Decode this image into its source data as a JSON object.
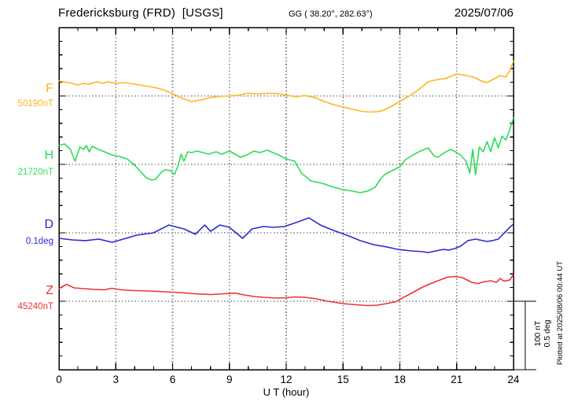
{
  "header": {
    "station": "Fredericksburg (FRD)  [USGS]",
    "gg": "GG ( 38.20°, 282.63°)",
    "date": "2025/07/06"
  },
  "footer": {
    "plotted_at": "Plotted at 2025/08/06 00:44 UT"
  },
  "scalebar": {
    "label": "100 nT\n0.5 deg"
  },
  "chart_data": {
    "type": "line",
    "title": "Fredericksburg (FRD) [USGS] magnetogram 2025/07/06",
    "xlabel": "U T (hour)",
    "x_range": [
      0,
      24
    ],
    "x_ticks": [
      0,
      3,
      6,
      9,
      12,
      15,
      18,
      21,
      24
    ],
    "grid": "dotted vertical every 3 h, dotted horizontal baseline per channel",
    "scale_division": {
      "nT": 100,
      "deg": 0.5
    },
    "series": [
      {
        "name": "F",
        "baseline_label": "50190nT",
        "unit": "nT",
        "color": "#FFB41E",
        "points": [
          [
            0,
            21.8
          ],
          [
            0.5,
            19.5
          ],
          [
            1,
            16.1
          ],
          [
            1.3,
            18.4
          ],
          [
            1.6,
            17.2
          ],
          [
            2,
            20.7
          ],
          [
            2.3,
            18.4
          ],
          [
            2.6,
            20.7
          ],
          [
            3,
            18.4
          ],
          [
            3.5,
            19.5
          ],
          [
            4,
            17.2
          ],
          [
            4.5,
            14.9
          ],
          [
            5,
            12.6
          ],
          [
            5.5,
            9.2
          ],
          [
            6,
            3.4
          ],
          [
            6.5,
            -3.4
          ],
          [
            7,
            -8
          ],
          [
            7.5,
            -5.7
          ],
          [
            8,
            -2.3
          ],
          [
            8.5,
            -0.6
          ],
          [
            9,
            0
          ],
          [
            9.5,
            1.1
          ],
          [
            10,
            4
          ],
          [
            10.5,
            2.9
          ],
          [
            11,
            4
          ],
          [
            11.5,
            3.4
          ],
          [
            12,
            1.1
          ],
          [
            12.5,
            -1.1
          ],
          [
            13,
            0.6
          ],
          [
            13.5,
            -2.3
          ],
          [
            14,
            -8
          ],
          [
            14.5,
            -12.6
          ],
          [
            15,
            -16.1
          ],
          [
            15.5,
            -19.5
          ],
          [
            16,
            -22.4
          ],
          [
            16.4,
            -23.6
          ],
          [
            16.8,
            -23
          ],
          [
            17.1,
            -21.3
          ],
          [
            17.5,
            -16.1
          ],
          [
            18,
            -8
          ],
          [
            18.5,
            0
          ],
          [
            19,
            9.2
          ],
          [
            19.5,
            20.7
          ],
          [
            20,
            24.1
          ],
          [
            20.4,
            25.3
          ],
          [
            20.7,
            28.7
          ],
          [
            21,
            32.2
          ],
          [
            21.3,
            31
          ],
          [
            21.7,
            28.7
          ],
          [
            22,
            26.4
          ],
          [
            22.3,
            21.8
          ],
          [
            22.6,
            19.5
          ],
          [
            23,
            25.3
          ],
          [
            23.3,
            29.9
          ],
          [
            23.6,
            27.6
          ],
          [
            23.8,
            36.8
          ],
          [
            24,
            50.6
          ]
        ]
      },
      {
        "name": "H",
        "baseline_label": "21720nT",
        "unit": "nT",
        "color": "#2EDC57",
        "points": [
          [
            0,
            27.6
          ],
          [
            0.3,
            29.9
          ],
          [
            0.6,
            21.8
          ],
          [
            0.85,
            4.6
          ],
          [
            1.1,
            25.3
          ],
          [
            1.3,
            21.8
          ],
          [
            1.45,
            27.6
          ],
          [
            1.6,
            18.4
          ],
          [
            1.75,
            26.4
          ],
          [
            2,
            23
          ],
          [
            2.4,
            18.4
          ],
          [
            2.8,
            13.8
          ],
          [
            3.2,
            11.5
          ],
          [
            3.6,
            8
          ],
          [
            4,
            -1.1
          ],
          [
            4.3,
            -10.3
          ],
          [
            4.6,
            -19.5
          ],
          [
            4.9,
            -23
          ],
          [
            5.1,
            -21.8
          ],
          [
            5.4,
            -11.5
          ],
          [
            5.6,
            -8
          ],
          [
            5.9,
            -9.2
          ],
          [
            6.1,
            -14.9
          ],
          [
            6.3,
            -1.1
          ],
          [
            6.45,
            14.9
          ],
          [
            6.6,
            4.6
          ],
          [
            6.8,
            18.4
          ],
          [
            7,
            17.2
          ],
          [
            7.3,
            19.5
          ],
          [
            7.6,
            17.2
          ],
          [
            7.9,
            14.9
          ],
          [
            8.3,
            18.4
          ],
          [
            8.6,
            14.9
          ],
          [
            9,
            19.5
          ],
          [
            9.3,
            14.9
          ],
          [
            9.6,
            10.3
          ],
          [
            10,
            14.9
          ],
          [
            10.3,
            19.5
          ],
          [
            10.6,
            17.2
          ],
          [
            11,
            20.7
          ],
          [
            11.3,
            17.2
          ],
          [
            11.6,
            13.8
          ],
          [
            12,
            8
          ],
          [
            12.45,
            4.6
          ],
          [
            12.8,
            -12.6
          ],
          [
            13.3,
            -24.1
          ],
          [
            13.9,
            -27.6
          ],
          [
            14.5,
            -33.3
          ],
          [
            15,
            -36.8
          ],
          [
            15.5,
            -39.1
          ],
          [
            15.9,
            -41.4
          ],
          [
            16.3,
            -39.1
          ],
          [
            16.7,
            -33.3
          ],
          [
            17,
            -20.7
          ],
          [
            17.2,
            -14.9
          ],
          [
            17.5,
            -10.3
          ],
          [
            18,
            -3.4
          ],
          [
            18.3,
            6.9
          ],
          [
            18.7,
            13.8
          ],
          [
            19,
            18.4
          ],
          [
            19.3,
            21.8
          ],
          [
            19.5,
            24.1
          ],
          [
            19.8,
            12.6
          ],
          [
            20,
            10.3
          ],
          [
            20.3,
            16.1
          ],
          [
            20.5,
            19.5
          ],
          [
            20.7,
            21.8
          ],
          [
            21,
            17.2
          ],
          [
            21.2,
            13.8
          ],
          [
            21.5,
            4.6
          ],
          [
            21.7,
            -12.6
          ],
          [
            21.85,
            21.8
          ],
          [
            22,
            -14.9
          ],
          [
            22.2,
            25.3
          ],
          [
            22.4,
            18.4
          ],
          [
            22.6,
            33.3
          ],
          [
            22.8,
            18.4
          ],
          [
            23,
            39.1
          ],
          [
            23.2,
            24.1
          ],
          [
            23.4,
            41.4
          ],
          [
            23.6,
            35.6
          ],
          [
            23.8,
            50.6
          ],
          [
            24,
            67.8
          ]
        ]
      },
      {
        "name": "D",
        "baseline_label": "0.1deg",
        "unit": "deg",
        "color": "#2A2ACF",
        "points": [
          [
            0,
            -0.04
          ],
          [
            0.7,
            -0.052
          ],
          [
            1.4,
            -0.057
          ],
          [
            2.1,
            -0.046
          ],
          [
            2.8,
            -0.069
          ],
          [
            3.4,
            -0.046
          ],
          [
            4.1,
            -0.017
          ],
          [
            5,
            0
          ],
          [
            5.8,
            0.057
          ],
          [
            6.6,
            0.029
          ],
          [
            7.2,
            -0.011
          ],
          [
            7.7,
            0.057
          ],
          [
            8,
            0.011
          ],
          [
            8.5,
            0.057
          ],
          [
            9,
            0.04
          ],
          [
            9.7,
            -0.04
          ],
          [
            10.2,
            0.029
          ],
          [
            10.8,
            0.046
          ],
          [
            11.3,
            0.04
          ],
          [
            11.9,
            0.046
          ],
          [
            12.4,
            0.069
          ],
          [
            13.2,
            0.109
          ],
          [
            13.8,
            0.057
          ],
          [
            14.5,
            0.017
          ],
          [
            15.2,
            -0.017
          ],
          [
            15.9,
            -0.057
          ],
          [
            16.6,
            -0.086
          ],
          [
            17.3,
            -0.103
          ],
          [
            17.9,
            -0.121
          ],
          [
            18.6,
            -0.132
          ],
          [
            19.2,
            -0.138
          ],
          [
            19.5,
            -0.144
          ],
          [
            19.9,
            -0.132
          ],
          [
            20.3,
            -0.121
          ],
          [
            20.6,
            -0.126
          ],
          [
            20.9,
            -0.115
          ],
          [
            21.2,
            -0.098
          ],
          [
            21.6,
            -0.057
          ],
          [
            22,
            -0.046
          ],
          [
            22.2,
            -0.052
          ],
          [
            22.6,
            -0.063
          ],
          [
            22.9,
            -0.057
          ],
          [
            23.2,
            -0.046
          ],
          [
            23.4,
            -0.017
          ],
          [
            23.6,
            0.011
          ],
          [
            23.8,
            0.04
          ],
          [
            24,
            0.063
          ]
        ]
      },
      {
        "name": "Z",
        "baseline_label": "45240nT",
        "unit": "nT",
        "color": "#EE3232",
        "points": [
          [
            0,
            18.4
          ],
          [
            0.4,
            24.7
          ],
          [
            0.8,
            19.5
          ],
          [
            1.3,
            18.4
          ],
          [
            1.9,
            17.2
          ],
          [
            2.4,
            16.7
          ],
          [
            2.8,
            19
          ],
          [
            3.3,
            16.7
          ],
          [
            4,
            15.5
          ],
          [
            4.8,
            14.9
          ],
          [
            5.6,
            13.8
          ],
          [
            6.4,
            12.6
          ],
          [
            7.2,
            10.9
          ],
          [
            8,
            9.8
          ],
          [
            8.7,
            10.9
          ],
          [
            9.3,
            12
          ],
          [
            9.8,
            9.2
          ],
          [
            10.3,
            6.9
          ],
          [
            10.8,
            5.7
          ],
          [
            11.5,
            4.6
          ],
          [
            12,
            5.2
          ],
          [
            12.5,
            6.3
          ],
          [
            13,
            5.7
          ],
          [
            13.6,
            3.4
          ],
          [
            14.2,
            0
          ],
          [
            15,
            -3.4
          ],
          [
            15.7,
            -5.2
          ],
          [
            16.3,
            -6.3
          ],
          [
            16.8,
            -5.7
          ],
          [
            17.3,
            -3.4
          ],
          [
            17.8,
            -0.6
          ],
          [
            18.2,
            5.7
          ],
          [
            18.6,
            11.5
          ],
          [
            19.2,
            20.7
          ],
          [
            19.9,
            28.7
          ],
          [
            20.5,
            35.1
          ],
          [
            20.9,
            36.2
          ],
          [
            21.3,
            34.5
          ],
          [
            21.8,
            27.6
          ],
          [
            22.1,
            25.9
          ],
          [
            22.5,
            28.7
          ],
          [
            22.8,
            29.9
          ],
          [
            23.1,
            27.6
          ],
          [
            23.3,
            33.3
          ],
          [
            23.5,
            29.3
          ],
          [
            23.8,
            31
          ],
          [
            24,
            39.1
          ]
        ]
      }
    ]
  }
}
